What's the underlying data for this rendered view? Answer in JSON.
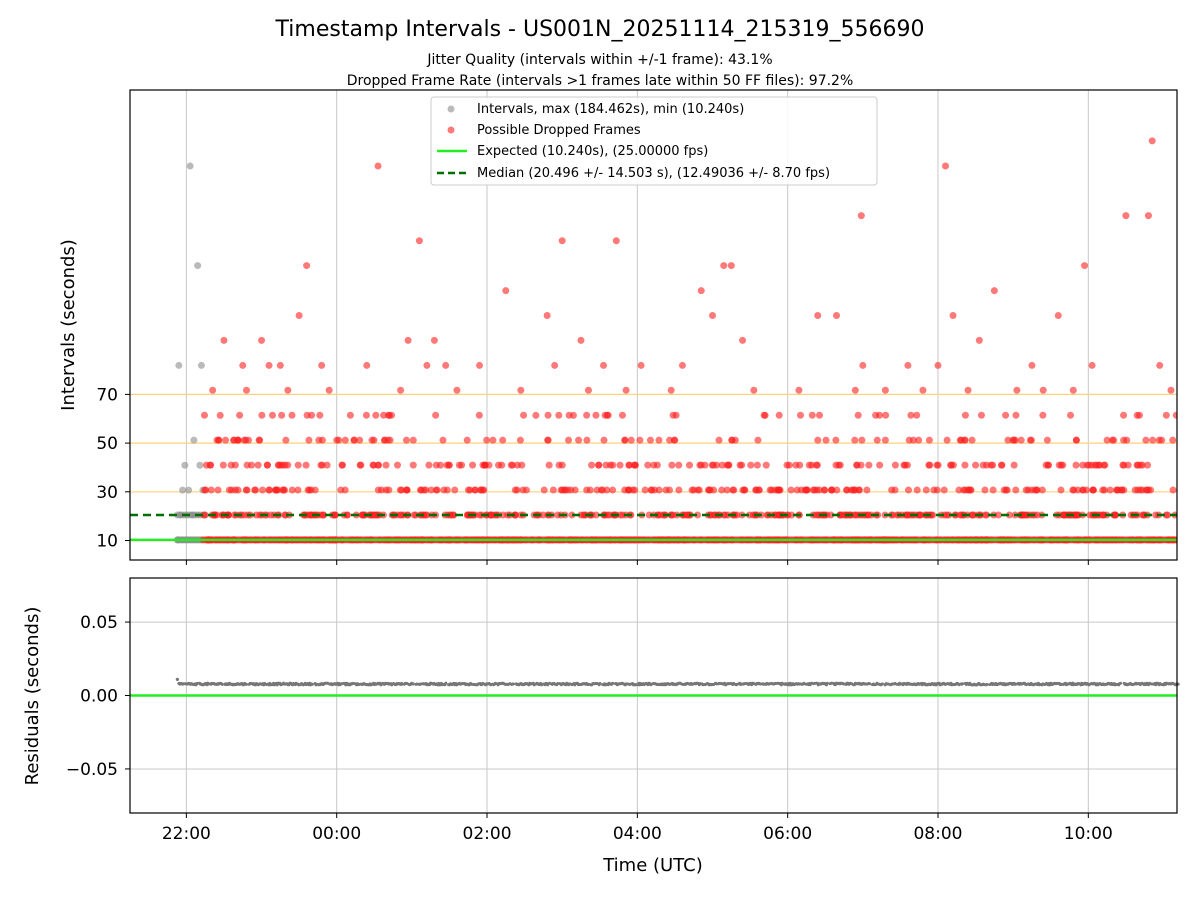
{
  "title": "Timestamp Intervals - US001N_20251114_215319_556690",
  "subtitle1": "Jitter Quality (intervals within +/-1 frame): 43.1%",
  "subtitle2": "Dropped Frame Rate (intervals >1 frames late within 50 FF files): 97.2%",
  "chart_data": [
    {
      "type": "scatter",
      "panel": "intervals",
      "ylabel": "Intervals (seconds)",
      "yticks": [
        10,
        30,
        50,
        70
      ],
      "ylim": [
        2,
        195
      ],
      "xlim_hours": [
        21.25,
        35.18
      ],
      "threshold_lines": [
        10,
        30,
        50,
        70
      ],
      "legend": {
        "placement": "top-center",
        "entries": [
          {
            "label": "Intervals, max (184.462s), min (10.240s)",
            "kind": "point",
            "color": "#8c8c8c"
          },
          {
            "label": "Possible Dropped Frames",
            "kind": "point",
            "color": "#ff2020"
          },
          {
            "label": "Expected (10.240s), (25.00000 fps)",
            "kind": "line",
            "color": "#22ee22"
          },
          {
            "label": "Median (20.496 +/- 14.503 s), (12.49036 +/- 8.70 fps)",
            "kind": "dashed",
            "color": "#007000"
          }
        ]
      },
      "expected": 10.24,
      "median": 20.496,
      "max": 184.462,
      "min": 10.24,
      "gray_points": [
        {
          "t": 21.88,
          "v": 10.24
        },
        {
          "t": 21.92,
          "v": 20.5
        },
        {
          "t": 21.95,
          "v": 30.7
        },
        {
          "t": 21.9,
          "v": 81.9
        },
        {
          "t": 21.98,
          "v": 40.9
        },
        {
          "t": 22.03,
          "v": 30.7
        },
        {
          "t": 22.05,
          "v": 163.8
        },
        {
          "t": 22.1,
          "v": 51.2
        },
        {
          "t": 22.15,
          "v": 122.9
        },
        {
          "t": 22.2,
          "v": 81.9
        },
        {
          "t": 22.18,
          "v": 40.9
        },
        {
          "t": 22.22,
          "v": 30.7
        },
        {
          "t": 22.25,
          "v": 20.5
        },
        {
          "t": 22.08,
          "v": 20.5
        }
      ],
      "dropped_points": [
        {
          "t": 22.35,
          "v": 71.7
        },
        {
          "t": 22.45,
          "v": 61.4
        },
        {
          "t": 22.5,
          "v": 92.2
        },
        {
          "t": 22.75,
          "v": 81.9
        },
        {
          "t": 22.8,
          "v": 71.7
        },
        {
          "t": 23.0,
          "v": 92.2
        },
        {
          "t": 23.1,
          "v": 81.9
        },
        {
          "t": 23.25,
          "v": 81.9
        },
        {
          "t": 23.35,
          "v": 71.7
        },
        {
          "t": 23.5,
          "v": 102.4
        },
        {
          "t": 23.6,
          "v": 122.9
        },
        {
          "t": 23.8,
          "v": 81.9
        },
        {
          "t": 23.9,
          "v": 71.7
        },
        {
          "t": 24.4,
          "v": 81.9
        },
        {
          "t": 24.55,
          "v": 163.8
        },
        {
          "t": 24.7,
          "v": 61.4
        },
        {
          "t": 24.85,
          "v": 71.7
        },
        {
          "t": 24.95,
          "v": 92.2
        },
        {
          "t": 25.1,
          "v": 133.1
        },
        {
          "t": 25.2,
          "v": 81.9
        },
        {
          "t": 25.3,
          "v": 92.2
        },
        {
          "t": 25.45,
          "v": 81.9
        },
        {
          "t": 25.6,
          "v": 71.7
        },
        {
          "t": 25.9,
          "v": 81.9
        },
        {
          "t": 26.25,
          "v": 112.6
        },
        {
          "t": 26.45,
          "v": 71.7
        },
        {
          "t": 26.65,
          "v": 61.4
        },
        {
          "t": 26.8,
          "v": 102.4
        },
        {
          "t": 26.9,
          "v": 81.9
        },
        {
          "t": 27.0,
          "v": 133.1
        },
        {
          "t": 27.15,
          "v": 61.4
        },
        {
          "t": 27.25,
          "v": 92.2
        },
        {
          "t": 27.35,
          "v": 71.7
        },
        {
          "t": 27.55,
          "v": 81.9
        },
        {
          "t": 27.72,
          "v": 133.1
        },
        {
          "t": 27.85,
          "v": 71.7
        },
        {
          "t": 28.05,
          "v": 81.9
        },
        {
          "t": 28.45,
          "v": 71.7
        },
        {
          "t": 28.6,
          "v": 81.9
        },
        {
          "t": 28.85,
          "v": 112.6
        },
        {
          "t": 29.0,
          "v": 102.4
        },
        {
          "t": 29.15,
          "v": 122.9
        },
        {
          "t": 29.25,
          "v": 122.9
        },
        {
          "t": 29.4,
          "v": 92.2
        },
        {
          "t": 29.55,
          "v": 71.7
        },
        {
          "t": 29.7,
          "v": 61.4
        },
        {
          "t": 30.15,
          "v": 71.7
        },
        {
          "t": 30.4,
          "v": 102.4
        },
        {
          "t": 30.65,
          "v": 102.4
        },
        {
          "t": 30.9,
          "v": 71.7
        },
        {
          "t": 31.0,
          "v": 81.9
        },
        {
          "t": 31.3,
          "v": 71.7
        },
        {
          "t": 31.6,
          "v": 81.9
        },
        {
          "t": 31.8,
          "v": 71.7
        },
        {
          "t": 32.0,
          "v": 81.9
        },
        {
          "t": 32.1,
          "v": 163.8
        },
        {
          "t": 32.2,
          "v": 102.4
        },
        {
          "t": 32.4,
          "v": 71.7
        },
        {
          "t": 32.55,
          "v": 92.2
        },
        {
          "t": 32.75,
          "v": 112.6
        },
        {
          "t": 33.05,
          "v": 71.7
        },
        {
          "t": 33.25,
          "v": 81.9
        },
        {
          "t": 33.4,
          "v": 71.7
        },
        {
          "t": 33.6,
          "v": 102.4
        },
        {
          "t": 33.8,
          "v": 71.7
        },
        {
          "t": 33.95,
          "v": 122.9
        },
        {
          "t": 34.05,
          "v": 81.9
        },
        {
          "t": 34.5,
          "v": 143.4
        },
        {
          "t": 34.65,
          "v": 61.4
        },
        {
          "t": 34.8,
          "v": 143.4
        },
        {
          "t": 34.85,
          "v": 174.1
        },
        {
          "t": 34.95,
          "v": 81.9
        },
        {
          "t": 35.1,
          "v": 71.7
        },
        {
          "t": 30.98,
          "v": 143.4
        }
      ]
    },
    {
      "type": "scatter",
      "panel": "residuals",
      "ylabel": "Residuals (seconds)",
      "xlabel": "Time (UTC)",
      "yticks": [
        "0.05",
        "0.00",
        "−0.05"
      ],
      "ylim": [
        -0.08,
        0.08
      ],
      "xticks": [
        "22:00",
        "00:00",
        "02:00",
        "04:00",
        "06:00",
        "08:00",
        "10:00"
      ],
      "residual_level": 0.0078,
      "first_residual": 0.011,
      "expected_line": 0.0
    }
  ],
  "colors": {
    "gray": "#8c8c8c",
    "red": "#ff2020",
    "expected": "#22ee22",
    "median": "#007000",
    "threshold": "#ffd27a",
    "grid": "#c8c8c8",
    "residual": "#777777"
  }
}
